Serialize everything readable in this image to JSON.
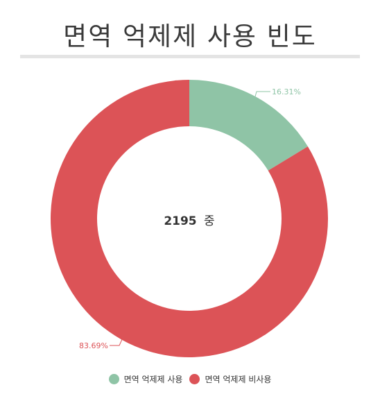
{
  "title": "면역 억제제 사용 빈도",
  "colors": {
    "used": "#8fc4a6",
    "unused": "#dc5357"
  },
  "chart_data": {
    "type": "pie",
    "variant": "donut",
    "center_label": {
      "count": "2195",
      "suffix": "중"
    },
    "slices": [
      {
        "name": "면역 억제제 사용",
        "value": 16.31,
        "label": "16.31%",
        "color": "#8fc4a6"
      },
      {
        "name": "면역 억제제 비사용",
        "value": 83.69,
        "label": "83.69%",
        "color": "#dc5357"
      }
    ],
    "legend_position": "bottom"
  }
}
